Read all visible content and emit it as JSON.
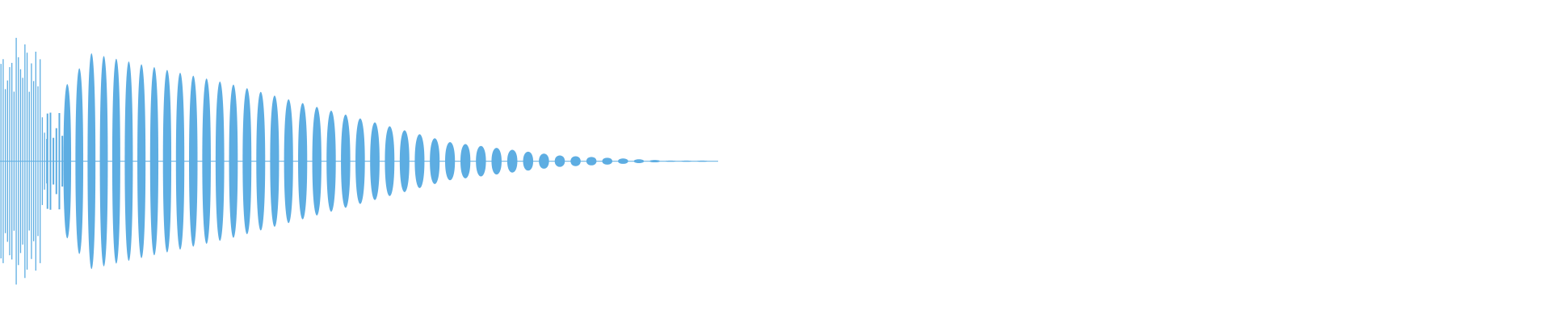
{
  "waveform": {
    "color": "#5dade2"
  }
}
